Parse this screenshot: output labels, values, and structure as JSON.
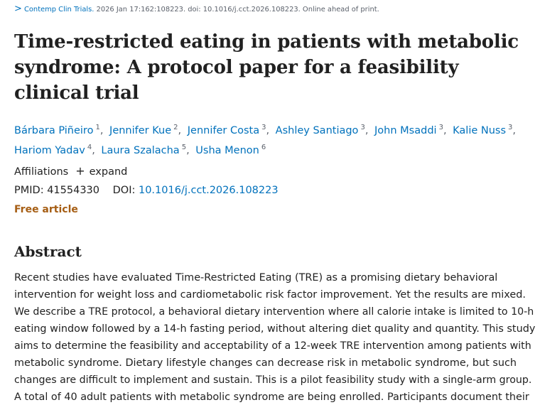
{
  "citation": {
    "chevron": ">",
    "journal": "Contemp Clin Trials.",
    "details": "2026 Jan 17:162:108223. doi: 10.1016/j.cct.2026.108223. Online ahead of print."
  },
  "title": "Time-restricted eating in patients with metabolic syndrome: A protocol paper for a feasibility clinical trial",
  "authors": [
    {
      "name": "Bárbara Piñeiro",
      "aff": "1"
    },
    {
      "name": "Jennifer Kue",
      "aff": "2"
    },
    {
      "name": "Jennifer Costa",
      "aff": "3"
    },
    {
      "name": "Ashley Santiago",
      "aff": "3"
    },
    {
      "name": "John Msaddi",
      "aff": "3"
    },
    {
      "name": "Kalie Nuss",
      "aff": "3"
    },
    {
      "name": "Hariom Yadav",
      "aff": "4"
    },
    {
      "name": "Laura Szalacha",
      "aff": "5"
    },
    {
      "name": "Usha Menon",
      "aff": "6"
    }
  ],
  "affiliations": {
    "label": "Affiliations",
    "expand_icon": "+",
    "expand_label": "expand"
  },
  "ids": {
    "pmid_label": "PMID:",
    "pmid": "41554330",
    "doi_label": "DOI:",
    "doi": "10.1016/j.cct.2026.108223"
  },
  "free_article": "Free article",
  "abstract": {
    "heading": "Abstract",
    "lines": [
      "Recent studies have evaluated Time-Restricted Eating (TRE) as a promising dietary behavioral",
      "intervention for weight loss and cardiometabolic risk factor improvement. Yet the results are mixed.",
      "We describe a TRE protocol, a behavioral dietary intervention where all calorie intake is limited to 10-h",
      "eating window followed by a 14-h fasting period, without altering diet quality and quantity. This study",
      "aims to determine the feasibility and acceptability of a 12-week TRE intervention among patients with",
      "metabolic syndrome. Dietary lifestyle changes can decrease risk in metabolic syndrome, but such",
      "changes are difficult to implement and sustain. This is a pilot feasibility study with a single-arm group.",
      "A total of 40 adult patients with metabolic syndrome are being enrolled. Participants document their"
    ]
  }
}
